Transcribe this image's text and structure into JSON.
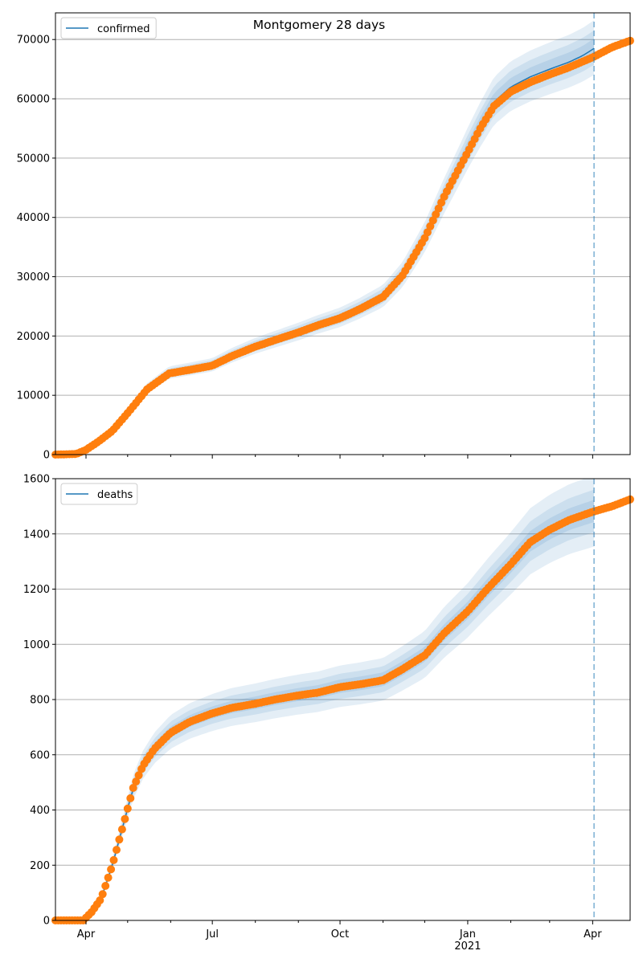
{
  "title": "Montgomery 28 days",
  "x_tick_labels": [
    "Apr",
    "Jul",
    "Oct",
    "Jan",
    "Apr"
  ],
  "x_year_label": "2021",
  "colors": {
    "model_line": "#1f77b4",
    "band": "#1f77b4",
    "observed": "#ff7f0e",
    "vline": "#1f77b4",
    "grid": "#b0b0b0"
  },
  "chart_data": [
    {
      "type": "line",
      "name": "confirmed",
      "legend": "confirmed",
      "legend_loc": "upper left",
      "x_range": [
        "2020-03-10",
        "2021-04-28"
      ],
      "ylim": [
        0,
        74500
      ],
      "yticks": [
        0,
        10000,
        20000,
        30000,
        40000,
        50000,
        60000,
        70000
      ],
      "ytick_labels": [
        "0",
        "10000",
        "20000",
        "30000",
        "40000",
        "50000",
        "60000",
        "70000"
      ],
      "grid": "horizontal",
      "vline_date": "2021-04-02",
      "model_series": {
        "name": "confirmed",
        "x": [
          "2020-03-10",
          "2020-03-25",
          "2020-04-01",
          "2020-04-10",
          "2020-04-20",
          "2020-05-01",
          "2020-05-15",
          "2020-05-31",
          "2020-06-15",
          "2020-07-01",
          "2020-07-15",
          "2020-08-01",
          "2020-08-15",
          "2020-09-01",
          "2020-09-15",
          "2020-10-01",
          "2020-10-15",
          "2020-11-01",
          "2020-11-15",
          "2020-12-01",
          "2020-12-15",
          "2021-01-01",
          "2021-01-10",
          "2021-01-20",
          "2021-02-01",
          "2021-02-15",
          "2021-03-01",
          "2021-03-15",
          "2021-03-25",
          "2021-04-02"
        ],
        "y": [
          0,
          100,
          800,
          2200,
          4000,
          7000,
          11000,
          13700,
          14300,
          15000,
          16600,
          18200,
          19300,
          20600,
          21800,
          23000,
          24500,
          26600,
          30200,
          36500,
          43500,
          51500,
          55500,
          59500,
          62000,
          63700,
          65000,
          66200,
          67300,
          68500
        ]
      },
      "observed_series": {
        "x": [
          "2020-03-10",
          "2020-03-25",
          "2020-04-01",
          "2020-04-10",
          "2020-04-20",
          "2020-05-01",
          "2020-05-15",
          "2020-05-31",
          "2020-06-15",
          "2020-07-01",
          "2020-07-15",
          "2020-08-01",
          "2020-08-15",
          "2020-09-01",
          "2020-09-15",
          "2020-10-01",
          "2020-10-15",
          "2020-11-01",
          "2020-11-15",
          "2020-12-01",
          "2020-12-15",
          "2021-01-01",
          "2021-01-10",
          "2021-01-20",
          "2021-02-01",
          "2021-02-15",
          "2021-03-01",
          "2021-03-15",
          "2021-04-01",
          "2021-04-15",
          "2021-04-28"
        ],
        "y": [
          0,
          100,
          800,
          2200,
          4000,
          7000,
          11000,
          13700,
          14300,
          15000,
          16600,
          18200,
          19300,
          20600,
          21800,
          23000,
          24500,
          26600,
          30200,
          36500,
          43500,
          51000,
          55000,
          58800,
          61200,
          62800,
          64100,
          65300,
          67000,
          68700,
          69800
        ]
      },
      "band_half_widths_fraction": [
        0.02,
        0.04,
        0.065
      ]
    },
    {
      "type": "line",
      "name": "deaths",
      "legend": "deaths",
      "legend_loc": "upper left",
      "x_range": [
        "2020-03-10",
        "2021-04-28"
      ],
      "ylim": [
        0,
        1600
      ],
      "yticks": [
        0,
        200,
        400,
        600,
        800,
        1000,
        1200,
        1400,
        1600
      ],
      "ytick_labels": [
        "0",
        "200",
        "400",
        "600",
        "800",
        "1000",
        "1200",
        "1400",
        "1600"
      ],
      "grid": "horizontal",
      "vline_date": "2021-04-02",
      "model_series": {
        "name": "deaths",
        "x": [
          "2020-03-10",
          "2020-03-30",
          "2020-04-05",
          "2020-04-12",
          "2020-04-20",
          "2020-04-27",
          "2020-05-05",
          "2020-05-12",
          "2020-05-20",
          "2020-06-01",
          "2020-06-15",
          "2020-07-01",
          "2020-07-15",
          "2020-08-01",
          "2020-08-15",
          "2020-09-01",
          "2020-09-15",
          "2020-10-01",
          "2020-10-15",
          "2020-11-01",
          "2020-11-15",
          "2020-12-01",
          "2020-12-15",
          "2021-01-01",
          "2021-01-15",
          "2021-02-01",
          "2021-02-15",
          "2021-03-01",
          "2021-03-15",
          "2021-04-02"
        ],
        "y": [
          0,
          0,
          30,
          80,
          200,
          330,
          480,
          560,
          620,
          680,
          720,
          750,
          770,
          785,
          800,
          815,
          825,
          845,
          855,
          870,
          910,
          960,
          1040,
          1120,
          1200,
          1290,
          1370,
          1415,
          1450,
          1480
        ]
      },
      "observed_series": {
        "x": [
          "2020-03-10",
          "2020-03-30",
          "2020-04-05",
          "2020-04-12",
          "2020-04-20",
          "2020-04-27",
          "2020-05-05",
          "2020-05-12",
          "2020-05-20",
          "2020-06-01",
          "2020-06-15",
          "2020-07-01",
          "2020-07-15",
          "2020-08-01",
          "2020-08-15",
          "2020-09-01",
          "2020-09-15",
          "2020-10-01",
          "2020-10-15",
          "2020-11-01",
          "2020-11-15",
          "2020-12-01",
          "2020-12-15",
          "2021-01-01",
          "2021-01-15",
          "2021-02-01",
          "2021-02-15",
          "2021-03-01",
          "2021-03-15",
          "2021-04-01",
          "2021-04-15",
          "2021-04-28"
        ],
        "y": [
          0,
          0,
          30,
          80,
          200,
          330,
          480,
          560,
          620,
          680,
          720,
          750,
          770,
          785,
          800,
          815,
          825,
          845,
          855,
          870,
          910,
          960,
          1040,
          1120,
          1200,
          1290,
          1370,
          1415,
          1450,
          1480,
          1500,
          1525
        ]
      },
      "band_half_widths_fraction": [
        0.025,
        0.05,
        0.085
      ]
    }
  ]
}
